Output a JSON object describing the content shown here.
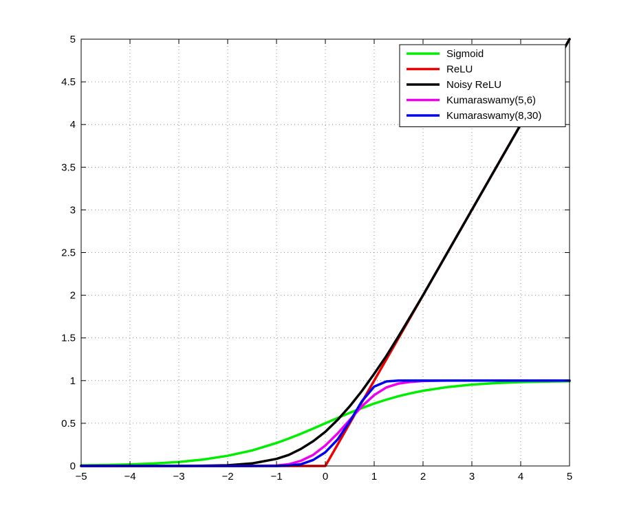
{
  "chart_data": {
    "type": "line",
    "title": "",
    "xlabel": "",
    "ylabel": "",
    "xlim": [
      -5,
      5
    ],
    "ylim": [
      0,
      5
    ],
    "grid": true,
    "legend_position": "top-right",
    "x_ticks": [
      -5,
      -4,
      -3,
      -2,
      -1,
      0,
      1,
      2,
      3,
      4,
      5
    ],
    "x_tick_labels": [
      "−5",
      "−4",
      "−3",
      "−2",
      "−1",
      "0",
      "1",
      "2",
      "3",
      "4",
      "5"
    ],
    "y_ticks": [
      0,
      0.5,
      1,
      1.5,
      2,
      2.5,
      3,
      3.5,
      4,
      4.5,
      5
    ],
    "y_tick_labels": [
      "0",
      "0.5",
      "1",
      "1.5",
      "2",
      "2.5",
      "3",
      "3.5",
      "4",
      "4.5",
      "5"
    ],
    "x": [
      -5,
      -4.5,
      -4,
      -3.5,
      -3,
      -2.5,
      -2,
      -1.5,
      -1,
      -0.75,
      -0.5,
      -0.25,
      0,
      0.25,
      0.5,
      0.75,
      1,
      1.25,
      1.5,
      1.75,
      2,
      2.5,
      3,
      3.5,
      4,
      4.5,
      5
    ],
    "series": [
      {
        "name": "Sigmoid",
        "color": "#00ee00",
        "values": [
          0.007,
          0.011,
          0.018,
          0.029,
          0.047,
          0.076,
          0.119,
          0.182,
          0.269,
          0.321,
          0.378,
          0.438,
          0.5,
          0.562,
          0.622,
          0.679,
          0.731,
          0.777,
          0.818,
          0.852,
          0.881,
          0.924,
          0.953,
          0.971,
          0.982,
          0.989,
          0.993
        ]
      },
      {
        "name": "ReLU",
        "color": "#ee0000",
        "values": [
          0,
          0,
          0,
          0,
          0,
          0,
          0,
          0,
          0,
          0,
          0,
          0,
          0,
          0.25,
          0.5,
          0.75,
          1,
          1.25,
          1.5,
          1.75,
          2,
          2.5,
          3,
          3.5,
          4,
          4.5,
          5
        ]
      },
      {
        "name": "Noisy ReLU",
        "color": "#000000",
        "values": [
          0,
          0,
          0,
          0,
          0,
          0.003,
          0.008,
          0.03,
          0.083,
          0.13,
          0.2,
          0.29,
          0.4,
          0.54,
          0.7,
          0.88,
          1.08,
          1.29,
          1.52,
          1.76,
          2.0,
          2.5,
          3.0,
          3.5,
          4.0,
          4.5,
          5.0
        ]
      },
      {
        "name": "Kumaraswamy(5,6)",
        "color": "#ee00ee",
        "values": [
          0,
          0,
          0,
          0,
          0,
          0,
          0,
          0,
          0.005,
          0.02,
          0.06,
          0.13,
          0.24,
          0.38,
          0.54,
          0.7,
          0.83,
          0.92,
          0.965,
          0.985,
          0.995,
          1.0,
          1.0,
          1.0,
          1.0,
          1.0,
          1.0
        ]
      },
      {
        "name": "Kumaraswamy(8,30)",
        "color": "#0000ee",
        "values": [
          0,
          0,
          0,
          0,
          0,
          0,
          0,
          0,
          0,
          0.005,
          0.02,
          0.07,
          0.16,
          0.31,
          0.52,
          0.76,
          0.93,
          0.99,
          1.0,
          1.0,
          1.0,
          1.0,
          1.0,
          1.0,
          1.0,
          1.0,
          1.0
        ]
      }
    ]
  }
}
